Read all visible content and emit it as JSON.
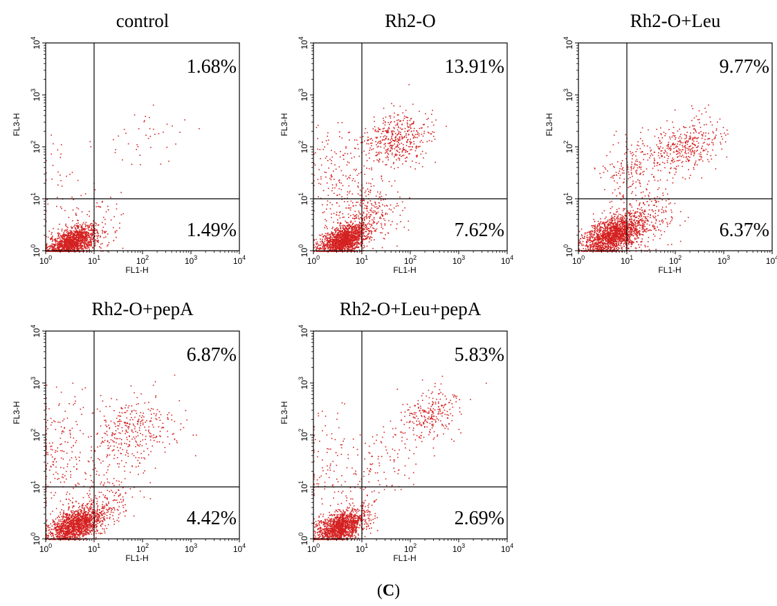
{
  "figure": {
    "panel_open": "(",
    "panel_letter": "C",
    "panel_close": ")"
  },
  "chart_data": [
    {
      "type": "scatter",
      "title": "control",
      "xlabel": "FL1-H",
      "ylabel": "FL3-H",
      "xscale": "log",
      "yscale": "log",
      "xlim": [
        1,
        10000
      ],
      "ylim": [
        1,
        10000
      ],
      "gate": {
        "x": 10,
        "y": 10
      },
      "quadrants": {
        "upper_right": "1.68%",
        "lower_right": "1.49%"
      },
      "point_color": "#d42020",
      "clusters": [
        {
          "n": 1400,
          "cx": 3.5,
          "cy": 1.5,
          "sx": 0.25,
          "sy": 0.15,
          "corr": 0.5
        },
        {
          "n": 90,
          "cx": 10,
          "cy": 3,
          "sx": 0.35,
          "sy": 0.3,
          "corr": 0.3
        },
        {
          "n": 40,
          "cx": 150,
          "cy": 150,
          "sx": 0.4,
          "sy": 0.3,
          "corr": 0.2
        },
        {
          "n": 40,
          "cx": 2,
          "cy": 20,
          "sx": 0.3,
          "sy": 0.5,
          "corr": 0
        }
      ]
    },
    {
      "type": "scatter",
      "title": "Rh2-O",
      "xlabel": "FL1-H",
      "ylabel": "FL3-H",
      "xscale": "log",
      "yscale": "log",
      "xlim": [
        1,
        10000
      ],
      "ylim": [
        1,
        10000
      ],
      "gate": {
        "x": 10,
        "y": 10
      },
      "quadrants": {
        "upper_right": "13.91%",
        "lower_right": "7.62%"
      },
      "point_color": "#d42020",
      "clusters": [
        {
          "n": 1500,
          "cx": 4,
          "cy": 1.6,
          "sx": 0.25,
          "sy": 0.16,
          "corr": 0.5
        },
        {
          "n": 450,
          "cx": 50,
          "cy": 150,
          "sx": 0.35,
          "sy": 0.25,
          "corr": 0.2
        },
        {
          "n": 300,
          "cx": 12,
          "cy": 5,
          "sx": 0.35,
          "sy": 0.35,
          "corr": 0.3
        },
        {
          "n": 150,
          "cx": 3,
          "cy": 30,
          "sx": 0.3,
          "sy": 0.5,
          "corr": 0
        }
      ]
    },
    {
      "type": "scatter",
      "title": "Rh2-O+Leu",
      "xlabel": "FL1-H",
      "ylabel": "FL3-H",
      "xscale": "log",
      "yscale": "log",
      "xlim": [
        1,
        10000
      ],
      "ylim": [
        1,
        10000
      ],
      "gate": {
        "x": 10,
        "y": 10
      },
      "quadrants": {
        "upper_right": "9.77%",
        "lower_right": "6.37%"
      },
      "point_color": "#d42020",
      "clusters": [
        {
          "n": 1600,
          "cx": 5,
          "cy": 2,
          "sx": 0.3,
          "sy": 0.2,
          "corr": 0.5
        },
        {
          "n": 400,
          "cx": 150,
          "cy": 100,
          "sx": 0.4,
          "sy": 0.3,
          "corr": 0.4
        },
        {
          "n": 150,
          "cx": 10,
          "cy": 40,
          "sx": 0.3,
          "sy": 0.3,
          "corr": 0.3
        },
        {
          "n": 300,
          "cx": 20,
          "cy": 4,
          "sx": 0.35,
          "sy": 0.3,
          "corr": 0.3
        }
      ]
    },
    {
      "type": "scatter",
      "title": "Rh2-O+pepA",
      "xlabel": "FL1-H",
      "ylabel": "FL3-H",
      "xscale": "log",
      "yscale": "log",
      "xlim": [
        1,
        10000
      ],
      "ylim": [
        1,
        10000
      ],
      "gate": {
        "x": 10,
        "y": 10
      },
      "quadrants": {
        "upper_right": "6.87%",
        "lower_right": "4.42%"
      },
      "point_color": "#d42020",
      "clusters": [
        {
          "n": 1500,
          "cx": 4,
          "cy": 1.8,
          "sx": 0.28,
          "sy": 0.18,
          "corr": 0.5
        },
        {
          "n": 350,
          "cx": 60,
          "cy": 120,
          "sx": 0.45,
          "sy": 0.35,
          "corr": 0.3
        },
        {
          "n": 200,
          "cx": 2,
          "cy": 40,
          "sx": 0.3,
          "sy": 0.6,
          "corr": 0
        },
        {
          "n": 200,
          "cx": 15,
          "cy": 5,
          "sx": 0.35,
          "sy": 0.3,
          "corr": 0.3
        }
      ]
    },
    {
      "type": "scatter",
      "title": "Rh2-O+Leu+pepA",
      "xlabel": "FL1-H",
      "ylabel": "FL3-H",
      "xscale": "log",
      "yscale": "log",
      "xlim": [
        1,
        10000
      ],
      "ylim": [
        1,
        10000
      ],
      "gate": {
        "x": 10,
        "y": 10
      },
      "quadrants": {
        "upper_right": "5.83%",
        "lower_right": "2.69%"
      },
      "point_color": "#d42020",
      "clusters": [
        {
          "n": 1400,
          "cx": 3.5,
          "cy": 1.7,
          "sx": 0.26,
          "sy": 0.17,
          "corr": 0.5
        },
        {
          "n": 250,
          "cx": 250,
          "cy": 250,
          "sx": 0.3,
          "sy": 0.25,
          "corr": 0.3
        },
        {
          "n": 120,
          "cx": 30,
          "cy": 30,
          "sx": 0.45,
          "sy": 0.4,
          "corr": 0.5
        },
        {
          "n": 100,
          "cx": 2,
          "cy": 30,
          "sx": 0.3,
          "sy": 0.5,
          "corr": 0
        }
      ]
    }
  ]
}
